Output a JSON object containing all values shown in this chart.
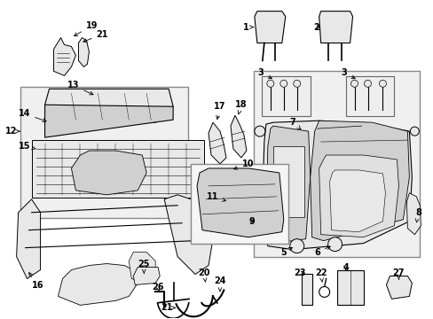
{
  "bg": "#ffffff",
  "lc": "#000000",
  "gray_light": "#e8e8e8",
  "gray_mid": "#d0d0d0",
  "gray_dark": "#b0b0b0",
  "fig_w": 4.89,
  "fig_h": 3.6,
  "dpi": 100
}
